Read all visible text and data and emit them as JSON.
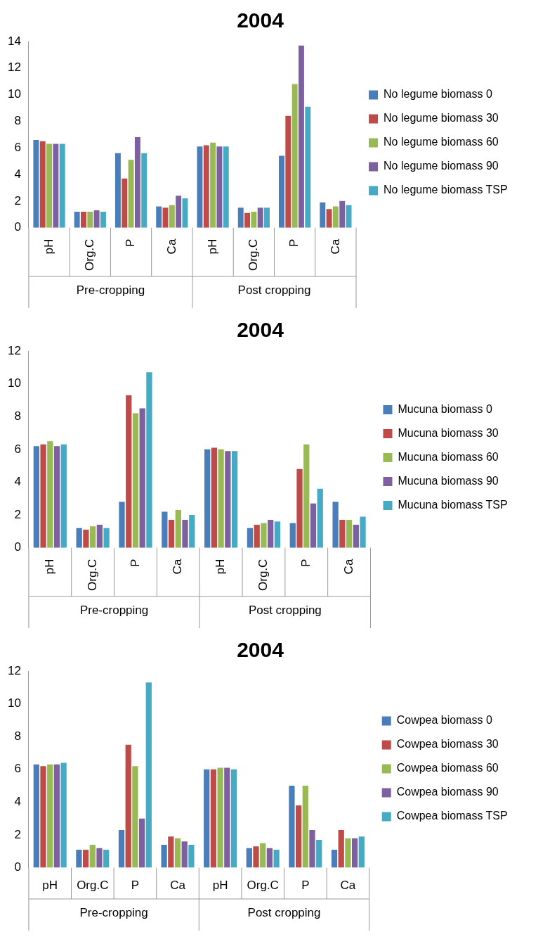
{
  "chart_data": [
    {
      "type": "bar",
      "title": "2004",
      "categories": [
        "pH",
        "Org.C",
        "P",
        "Ca",
        "pH",
        "Org.C",
        "P",
        "Ca"
      ],
      "ylim": [
        0,
        14
      ],
      "yticks": [
        0,
        2,
        4,
        6,
        8,
        10,
        12,
        14
      ],
      "legend": "right",
      "annotations": [
        "Pre-cropping",
        "Post cropping"
      ],
      "series": [
        {
          "name": "No legume biomass 0",
          "color": "#4a7ebb",
          "values": [
            6.6,
            1.2,
            5.6,
            1.6,
            6.1,
            1.5,
            5.4,
            1.9
          ]
        },
        {
          "name": "No legume biomass 30",
          "color": "#be4b48",
          "values": [
            6.5,
            1.2,
            3.7,
            1.5,
            6.2,
            1.1,
            8.4,
            1.4
          ]
        },
        {
          "name": "No legume biomass 60",
          "color": "#98b954",
          "values": [
            6.3,
            1.2,
            5.1,
            1.7,
            6.4,
            1.2,
            10.8,
            1.6
          ]
        },
        {
          "name": "No legume biomass 90",
          "color": "#7d60a0",
          "values": [
            6.3,
            1.3,
            6.8,
            2.4,
            6.1,
            1.5,
            13.7,
            2.0
          ]
        },
        {
          "name": "No legume biomass TSP",
          "color": "#46aac5",
          "values": [
            6.3,
            1.2,
            5.6,
            2.2,
            6.1,
            1.5,
            9.1,
            1.7
          ]
        }
      ]
    },
    {
      "type": "bar",
      "title": "2004",
      "categories": [
        "pH",
        "Org.C",
        "P",
        "Ca",
        "pH",
        "Org.C",
        "P",
        "Ca"
      ],
      "ylim": [
        0,
        12
      ],
      "yticks": [
        0,
        2,
        4,
        6,
        8,
        10,
        12
      ],
      "legend": "right",
      "annotations": [
        "Pre-cropping",
        "Post cropping"
      ],
      "series": [
        {
          "name": "Mucuna biomass 0",
          "color": "#4a7ebb",
          "values": [
            6.2,
            1.2,
            2.8,
            2.2,
            6.0,
            1.2,
            1.5,
            2.8
          ]
        },
        {
          "name": "Mucuna biomass 30",
          "color": "#be4b48",
          "values": [
            6.3,
            1.1,
            9.3,
            1.7,
            6.1,
            1.4,
            4.8,
            1.7
          ]
        },
        {
          "name": "Mucuna biomass 60",
          "color": "#98b954",
          "values": [
            6.5,
            1.3,
            8.2,
            2.3,
            6.0,
            1.5,
            6.3,
            1.7
          ]
        },
        {
          "name": "Mucuna biomass 90",
          "color": "#7d60a0",
          "values": [
            6.2,
            1.4,
            8.5,
            1.7,
            5.9,
            1.7,
            2.7,
            1.4
          ]
        },
        {
          "name": "Mucuna biomass TSP",
          "color": "#46aac5",
          "values": [
            6.3,
            1.2,
            10.7,
            2.0,
            5.9,
            1.6,
            3.6,
            1.9
          ]
        }
      ]
    },
    {
      "type": "bar",
      "title": "2004",
      "categories": [
        "pH",
        "Org.C",
        "P",
        "Ca",
        "pH",
        "Org.C",
        "P",
        "Ca"
      ],
      "ylim": [
        0,
        12
      ],
      "yticks": [
        0,
        2,
        4,
        6,
        8,
        10,
        12
      ],
      "legend": "right",
      "annotations": [
        "Pre-cropping",
        "Post cropping"
      ],
      "series": [
        {
          "name": "Cowpea biomass 0",
          "color": "#4a7ebb",
          "values": [
            6.3,
            1.1,
            2.3,
            1.4,
            6.0,
            1.2,
            5.0,
            1.1
          ]
        },
        {
          "name": "Cowpea biomass 30",
          "color": "#be4b48",
          "values": [
            6.2,
            1.1,
            7.5,
            1.9,
            6.0,
            1.3,
            3.8,
            2.3
          ]
        },
        {
          "name": "Cowpea biomass 60",
          "color": "#98b954",
          "values": [
            6.3,
            1.4,
            6.2,
            1.8,
            6.1,
            1.5,
            5.0,
            1.8
          ]
        },
        {
          "name": "Cowpea biomass 90",
          "color": "#7d60a0",
          "values": [
            6.3,
            1.2,
            3.0,
            1.6,
            6.1,
            1.2,
            2.3,
            1.8
          ]
        },
        {
          "name": "Cowpea biomass TSP",
          "color": "#46aac5",
          "values": [
            6.4,
            1.1,
            11.3,
            1.4,
            6.0,
            1.1,
            1.7,
            1.9
          ]
        }
      ]
    }
  ]
}
